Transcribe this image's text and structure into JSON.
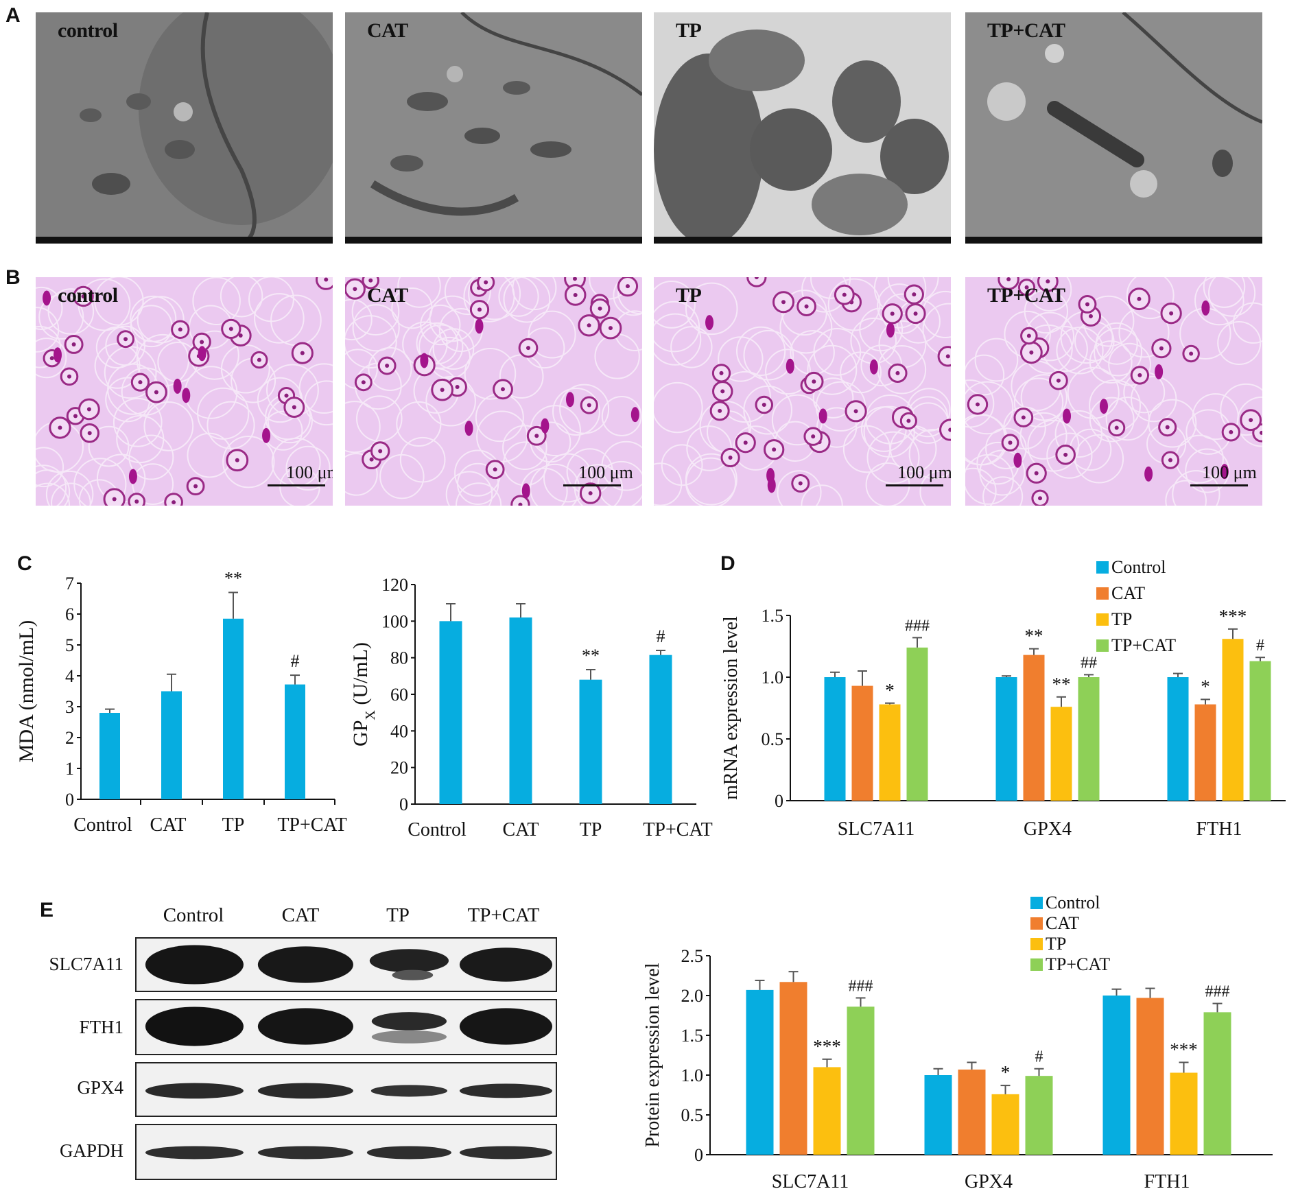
{
  "panels": {
    "A": {
      "letter": "A",
      "tiles": [
        {
          "label": "control"
        },
        {
          "label": "CAT"
        },
        {
          "label": "TP"
        },
        {
          "label": "TP+CAT"
        }
      ]
    },
    "B": {
      "letter": "B",
      "scale_label": "100 μm",
      "tiles": [
        {
          "label": "control"
        },
        {
          "label": "CAT"
        },
        {
          "label": "TP"
        },
        {
          "label": "TP+CAT"
        }
      ]
    },
    "C": {
      "letter": "C"
    },
    "D": {
      "letter": "D"
    },
    "E": {
      "letter": "E",
      "blot_columns": [
        "Control",
        "CAT",
        "TP",
        "TP+CAT"
      ],
      "blot_rows": [
        "SLC7A11",
        "FTH1",
        "GPX4",
        "GAPDH"
      ]
    }
  },
  "colors": {
    "Control": "#06ade0",
    "CAT": "#f07e2e",
    "TP": "#fcbf0f",
    "TP+CAT": "#8ed057",
    "single": "#06ade0"
  },
  "chart_data": [
    {
      "id": "C-MDA",
      "type": "bar",
      "categories": [
        "Control",
        "CAT",
        "TP",
        "TP+CAT"
      ],
      "values": [
        2.8,
        3.5,
        5.85,
        3.72
      ],
      "errors": [
        0.12,
        0.55,
        0.85,
        0.3
      ],
      "annotations": [
        "",
        "",
        "**",
        "#"
      ],
      "ylabel": "MDA (nmol/mL)",
      "ylim": [
        0,
        7
      ],
      "yticks": [
        0,
        1,
        2,
        3,
        4,
        5,
        6,
        7
      ]
    },
    {
      "id": "C-GPX",
      "type": "bar",
      "categories": [
        "Control",
        "CAT",
        "TP",
        "TP+CAT"
      ],
      "values": [
        100,
        102,
        68,
        81.5
      ],
      "errors": [
        9.5,
        7.5,
        5.5,
        2.5
      ],
      "annotations": [
        "",
        "",
        "**",
        "#"
      ],
      "ylabel": "GP",
      "ylabel_sub": "X",
      "ylabel_unit": " (U/mL)",
      "ylim": [
        0,
        120
      ],
      "yticks": [
        0,
        20,
        40,
        60,
        80,
        100,
        120
      ]
    },
    {
      "id": "D",
      "type": "bar",
      "categories": [
        "SLC7A11",
        "GPX4",
        "FTH1"
      ],
      "series": [
        {
          "name": "Control",
          "values": [
            1.0,
            1.0,
            1.0
          ],
          "errors": [
            0.04,
            0.01,
            0.03
          ],
          "annotations": [
            "",
            "",
            ""
          ]
        },
        {
          "name": "CAT",
          "values": [
            0.93,
            1.18,
            0.78
          ],
          "errors": [
            0.12,
            0.05,
            0.04
          ],
          "annotations": [
            "",
            "**",
            "*"
          ]
        },
        {
          "name": "TP",
          "values": [
            0.78,
            0.76,
            1.31
          ],
          "errors": [
            0.01,
            0.08,
            0.08
          ],
          "annotations": [
            "*",
            "**",
            "***"
          ]
        },
        {
          "name": "TP+CAT",
          "values": [
            1.24,
            1.0,
            1.13
          ],
          "errors": [
            0.08,
            0.02,
            0.03
          ],
          "annotations": [
            "###",
            "##",
            "#"
          ]
        }
      ],
      "ylabel": "mRNA expression level",
      "ylim": [
        0,
        1.5
      ],
      "yticks": [
        "0",
        "0.5",
        "1.0",
        "1.5"
      ],
      "legend": "top-right"
    },
    {
      "id": "E",
      "type": "bar",
      "categories": [
        "SLC7A11",
        "GPX4",
        "FTH1"
      ],
      "series": [
        {
          "name": "Control",
          "values": [
            2.07,
            1.0,
            2.0
          ],
          "errors": [
            0.12,
            0.08,
            0.08
          ],
          "annotations": [
            "",
            "",
            ""
          ]
        },
        {
          "name": "CAT",
          "values": [
            2.17,
            1.07,
            1.97
          ],
          "errors": [
            0.13,
            0.09,
            0.12
          ],
          "annotations": [
            "",
            "",
            ""
          ]
        },
        {
          "name": "TP",
          "values": [
            1.1,
            0.76,
            1.03
          ],
          "errors": [
            0.1,
            0.11,
            0.13
          ],
          "annotations": [
            "***",
            "*",
            "***"
          ]
        },
        {
          "name": "TP+CAT",
          "values": [
            1.86,
            0.99,
            1.79
          ],
          "errors": [
            0.11,
            0.09,
            0.11
          ],
          "annotations": [
            "###",
            "#",
            "###"
          ]
        }
      ],
      "ylabel": "Protein expression level",
      "ylim": [
        0,
        2.5
      ],
      "yticks": [
        "0",
        "0.5",
        "1.0",
        "1.5",
        "2.0",
        "2.5"
      ],
      "legend": "top-right"
    }
  ]
}
